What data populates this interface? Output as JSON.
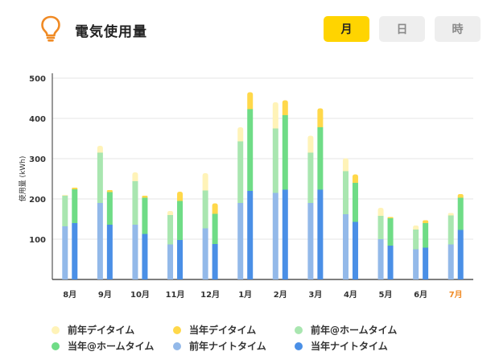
{
  "header": {
    "title": "電気使用量",
    "tabs": [
      {
        "label": "月",
        "active": true
      },
      {
        "label": "日",
        "active": false
      },
      {
        "label": "時",
        "active": false
      }
    ]
  },
  "colors": {
    "accent": "#ffd400",
    "icon": "#f08a24",
    "highlight_label": "#f08a24",
    "prev_day": "#fff3b8",
    "curr_day": "#ffd84a",
    "prev_home": "#a9e6b0",
    "curr_home": "#6fdc86",
    "prev_night": "#93b9e9",
    "curr_night": "#4a8fe6"
  },
  "chart_data": {
    "type": "bar",
    "stacked": true,
    "grouped": true,
    "ylabel": "使用量 (kWh)",
    "ylim": [
      0,
      500
    ],
    "yticks": [
      100,
      200,
      300,
      400,
      500
    ],
    "grid": true,
    "legend_position": "bottom",
    "highlight_category": "7月",
    "categories": [
      "8月",
      "9月",
      "10月",
      "11月",
      "12月",
      "1月",
      "2月",
      "3月",
      "4月",
      "5月",
      "6月",
      "7月"
    ],
    "groups": [
      {
        "name": "前年",
        "series": [
          {
            "name": "前年ナイトタイム",
            "color": "#93b9e9",
            "values": [
              132,
              190,
              136,
              87,
              127,
              190,
              215,
              190,
              162,
              100,
              75,
              87
            ]
          },
          {
            "name": "前年@ホームタイム",
            "color": "#a9e6b0",
            "values": [
              76,
              125,
              108,
              73,
              94,
              153,
              160,
              125,
              107,
              58,
              49,
              72
            ]
          },
          {
            "name": "前年デイタイム",
            "color": "#fff3b8",
            "values": [
              2,
              17,
              22,
              10,
              43,
              35,
              65,
              42,
              32,
              20,
              10,
              6
            ]
          }
        ]
      },
      {
        "name": "当年",
        "series": [
          {
            "name": "当年ナイトタイム",
            "color": "#4a8fe6",
            "values": [
              140,
              136,
              113,
              98,
              88,
              220,
              223,
              223,
              143,
              84,
              79,
              123
            ]
          },
          {
            "name": "当年@ホームタイム",
            "color": "#6fdc86",
            "values": [
              84,
              81,
              90,
              97,
              75,
              203,
              185,
              155,
              97,
              68,
              61,
              80
            ]
          },
          {
            "name": "当年デイタイム",
            "color": "#ffd84a",
            "values": [
              4,
              5,
              5,
              23,
              26,
              42,
              37,
              47,
              21,
              3,
              7,
              9
            ]
          }
        ]
      }
    ],
    "legend": [
      "前年デイタイム",
      "当年デイタイム",
      "前年@ホームタイム",
      "当年@ホームタイム",
      "前年ナイトタイム",
      "当年ナイトタイム"
    ]
  }
}
